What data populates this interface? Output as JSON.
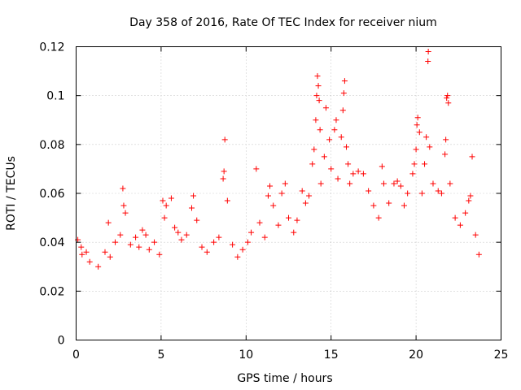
{
  "chart_data": {
    "type": "scatter",
    "title": "Day 358 of 2016, Rate Of TEC Index for receiver nium",
    "xlabel": "GPS time / hours",
    "ylabel": "ROTI / TECUs",
    "xlim": [
      0,
      25
    ],
    "ylim": [
      0,
      0.12
    ],
    "x_ticks": [
      0,
      5,
      10,
      15,
      20,
      25
    ],
    "y_ticks": [
      0,
      0.02,
      0.04,
      0.06,
      0.08,
      0.1,
      0.12
    ],
    "x_tick_labels": [
      "0",
      "5",
      "10",
      "15",
      "20",
      "25"
    ],
    "y_tick_labels": [
      "0",
      "0.02",
      "0.04",
      "0.06",
      "0.08",
      "0.1",
      "0.12"
    ],
    "grid": true,
    "marker": "+",
    "marker_color": "#ff0000",
    "points": [
      [
        0.1,
        0.041
      ],
      [
        0.3,
        0.038
      ],
      [
        0.35,
        0.035
      ],
      [
        0.6,
        0.036
      ],
      [
        0.8,
        0.032
      ],
      [
        1.3,
        0.03
      ],
      [
        1.7,
        0.036
      ],
      [
        1.9,
        0.048
      ],
      [
        2.0,
        0.034
      ],
      [
        2.3,
        0.04
      ],
      [
        2.6,
        0.043
      ],
      [
        2.75,
        0.062
      ],
      [
        2.8,
        0.055
      ],
      [
        2.9,
        0.052
      ],
      [
        3.2,
        0.039
      ],
      [
        3.5,
        0.042
      ],
      [
        3.7,
        0.038
      ],
      [
        3.9,
        0.045
      ],
      [
        4.1,
        0.043
      ],
      [
        4.3,
        0.037
      ],
      [
        4.6,
        0.04
      ],
      [
        4.9,
        0.035
      ],
      [
        5.1,
        0.057
      ],
      [
        5.2,
        0.05
      ],
      [
        5.3,
        0.055
      ],
      [
        5.6,
        0.058
      ],
      [
        5.8,
        0.046
      ],
      [
        6.0,
        0.044
      ],
      [
        6.2,
        0.041
      ],
      [
        6.5,
        0.043
      ],
      [
        6.8,
        0.054
      ],
      [
        6.9,
        0.059
      ],
      [
        7.1,
        0.049
      ],
      [
        7.4,
        0.038
      ],
      [
        7.7,
        0.036
      ],
      [
        8.1,
        0.04
      ],
      [
        8.4,
        0.042
      ],
      [
        8.65,
        0.066
      ],
      [
        8.7,
        0.069
      ],
      [
        8.75,
        0.082
      ],
      [
        8.9,
        0.057
      ],
      [
        9.2,
        0.039
      ],
      [
        9.5,
        0.034
      ],
      [
        9.8,
        0.037
      ],
      [
        10.1,
        0.04
      ],
      [
        10.3,
        0.044
      ],
      [
        10.6,
        0.07
      ],
      [
        10.8,
        0.048
      ],
      [
        11.1,
        0.042
      ],
      [
        11.3,
        0.059
      ],
      [
        11.4,
        0.063
      ],
      [
        11.6,
        0.055
      ],
      [
        11.9,
        0.047
      ],
      [
        12.1,
        0.06
      ],
      [
        12.3,
        0.064
      ],
      [
        12.5,
        0.05
      ],
      [
        12.8,
        0.044
      ],
      [
        13.0,
        0.049
      ],
      [
        13.3,
        0.061
      ],
      [
        13.5,
        0.056
      ],
      [
        13.7,
        0.059
      ],
      [
        13.9,
        0.072
      ],
      [
        14.0,
        0.078
      ],
      [
        14.1,
        0.09
      ],
      [
        14.15,
        0.1
      ],
      [
        14.2,
        0.108
      ],
      [
        14.25,
        0.104
      ],
      [
        14.3,
        0.098
      ],
      [
        14.35,
        0.086
      ],
      [
        14.4,
        0.064
      ],
      [
        14.6,
        0.075
      ],
      [
        14.7,
        0.095
      ],
      [
        14.9,
        0.082
      ],
      [
        15.0,
        0.07
      ],
      [
        15.2,
        0.086
      ],
      [
        15.3,
        0.09
      ],
      [
        15.4,
        0.066
      ],
      [
        15.6,
        0.083
      ],
      [
        15.7,
        0.094
      ],
      [
        15.75,
        0.101
      ],
      [
        15.8,
        0.106
      ],
      [
        15.9,
        0.079
      ],
      [
        16.0,
        0.072
      ],
      [
        16.1,
        0.064
      ],
      [
        16.3,
        0.068
      ],
      [
        16.6,
        0.069
      ],
      [
        16.9,
        0.068
      ],
      [
        17.2,
        0.061
      ],
      [
        17.5,
        0.055
      ],
      [
        17.8,
        0.05
      ],
      [
        18.0,
        0.071
      ],
      [
        18.1,
        0.064
      ],
      [
        18.4,
        0.056
      ],
      [
        18.7,
        0.064
      ],
      [
        18.9,
        0.065
      ],
      [
        19.1,
        0.063
      ],
      [
        19.3,
        0.055
      ],
      [
        19.5,
        0.06
      ],
      [
        19.8,
        0.068
      ],
      [
        19.9,
        0.072
      ],
      [
        20.0,
        0.078
      ],
      [
        20.05,
        0.088
      ],
      [
        20.1,
        0.091
      ],
      [
        20.2,
        0.085
      ],
      [
        20.35,
        0.06
      ],
      [
        20.5,
        0.072
      ],
      [
        20.6,
        0.083
      ],
      [
        20.7,
        0.114
      ],
      [
        20.72,
        0.118
      ],
      [
        20.8,
        0.079
      ],
      [
        21.0,
        0.064
      ],
      [
        21.3,
        0.061
      ],
      [
        21.5,
        0.06
      ],
      [
        21.7,
        0.076
      ],
      [
        21.75,
        0.082
      ],
      [
        21.8,
        0.099
      ],
      [
        21.85,
        0.1
      ],
      [
        21.9,
        0.097
      ],
      [
        22.0,
        0.064
      ],
      [
        22.3,
        0.05
      ],
      [
        22.6,
        0.047
      ],
      [
        22.9,
        0.052
      ],
      [
        23.1,
        0.057
      ],
      [
        23.2,
        0.059
      ],
      [
        23.3,
        0.075
      ],
      [
        23.5,
        0.043
      ],
      [
        23.7,
        0.035
      ]
    ]
  }
}
